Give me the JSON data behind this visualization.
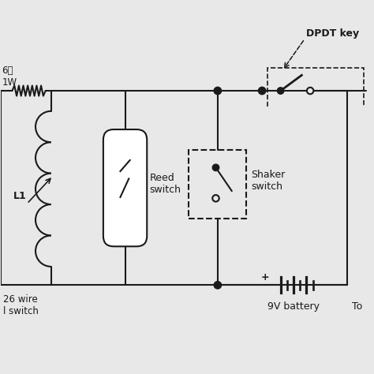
{
  "bg_color": "#e8e8e8",
  "line_color": "#1a1a1a",
  "lw": 1.5,
  "labels": {
    "resistor": "6΢\n1W",
    "inductor": "L1",
    "reed": "Reed\nswitch",
    "shaker": "Shaker\nswitch",
    "battery": "9V battery",
    "dpdt": "DPDT key",
    "wire": "26 wire\nl switch",
    "to": "To"
  },
  "fig_w": 4.74,
  "fig_h": 4.74,
  "dpi": 100
}
